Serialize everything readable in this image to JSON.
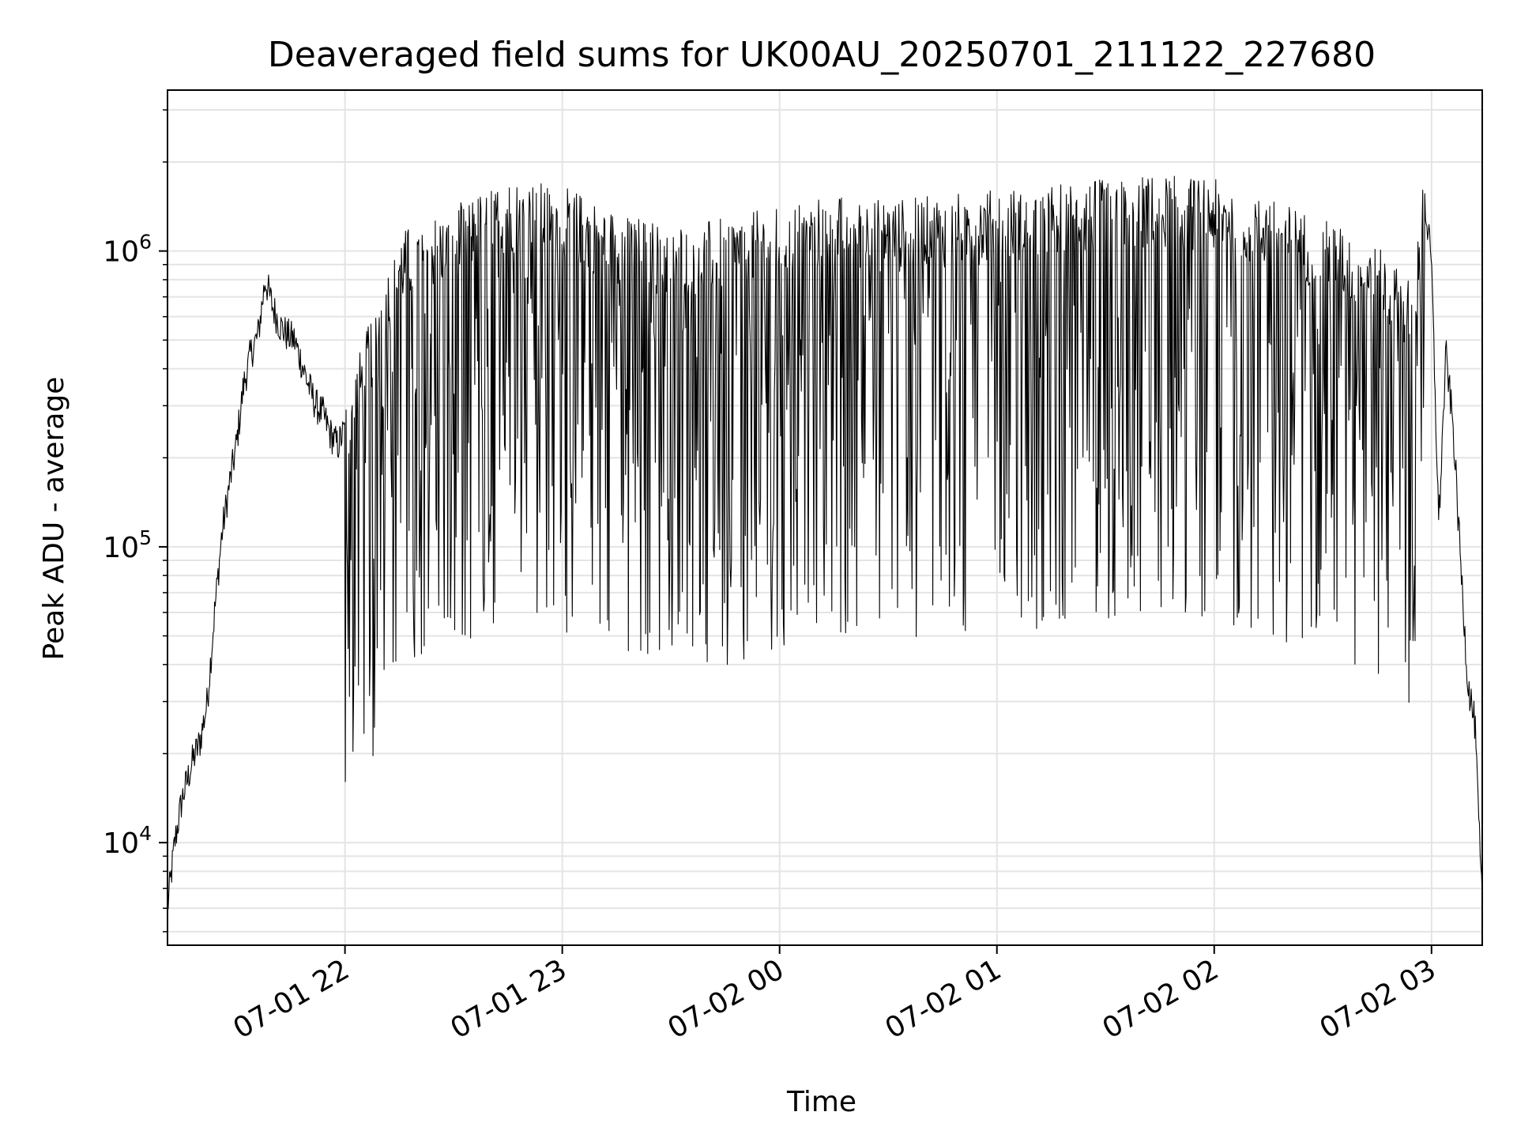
{
  "chart_data": {
    "type": "line",
    "title": "Deaveraged field sums for UK00AU_20250701_211122_227680",
    "xlabel": "Time",
    "ylabel": "Peak ADU - average",
    "yscale": "log",
    "grid": true,
    "legend": "none",
    "xlim": [
      "2025-07-01 21:11",
      "2025-07-02 03:14"
    ],
    "ylim": [
      4500,
      3500000
    ],
    "x_ticks": [
      {
        "value": "2025-07-01 22:00",
        "label": "07-01 22"
      },
      {
        "value": "2025-07-01 23:00",
        "label": "07-01 23"
      },
      {
        "value": "2025-07-02 00:00",
        "label": "07-02 00"
      },
      {
        "value": "2025-07-02 01:00",
        "label": "07-02 01"
      },
      {
        "value": "2025-07-02 02:00",
        "label": "07-02 02"
      },
      {
        "value": "2025-07-02 03:00",
        "label": "07-02 03"
      }
    ],
    "y_ticks": [
      {
        "value": 10000,
        "base": "10",
        "exp": "4"
      },
      {
        "value": 100000,
        "base": "10",
        "exp": "5"
      },
      {
        "value": 1000000,
        "base": "10",
        "exp": "6"
      }
    ],
    "series": [
      {
        "color": "#000000",
        "points": [
          [
            "2025-07-01 21:11",
            6000
          ],
          [
            "2025-07-01 21:13",
            10000
          ],
          [
            "2025-07-01 21:15",
            14000
          ],
          [
            "2025-07-01 21:18",
            19000
          ],
          [
            "2025-07-01 21:20",
            22000
          ],
          [
            "2025-07-01 21:22",
            30000
          ],
          [
            "2025-07-01 21:24",
            60000
          ],
          [
            "2025-07-01 21:26",
            110000
          ],
          [
            "2025-07-01 21:28",
            160000
          ],
          [
            "2025-07-01 21:30",
            220000
          ],
          [
            "2025-07-01 21:32",
            350000
          ],
          [
            "2025-07-01 21:34",
            450000
          ],
          [
            "2025-07-01 21:36",
            520000
          ],
          [
            "2025-07-01 21:38",
            800000
          ],
          [
            "2025-07-01 21:40",
            650000
          ],
          [
            "2025-07-01 21:42",
            560000
          ],
          [
            "2025-07-01 21:44",
            520000
          ],
          [
            "2025-07-01 21:46",
            500000
          ],
          [
            "2025-07-01 21:48",
            420000
          ],
          [
            "2025-07-01 21:50",
            350000
          ],
          [
            "2025-07-01 21:52",
            300000
          ],
          [
            "2025-07-01 21:54",
            280000
          ],
          [
            "2025-07-01 21:56",
            240000
          ],
          [
            "2025-07-01 21:58",
            220000
          ],
          [
            "2025-07-01 22:00",
            250000
          ],
          [
            "2025-07-01 22:15",
            900000
          ],
          [
            "2025-07-01 22:30",
            1100000
          ],
          [
            "2025-07-01 22:45",
            1350000
          ],
          [
            "2025-07-01 23:00",
            1300000
          ],
          [
            "2025-07-01 23:15",
            1050000
          ],
          [
            "2025-07-01 23:30",
            950000
          ],
          [
            "2025-07-01 23:45",
            1000000
          ],
          [
            "2025-07-02 00:00",
            1100000
          ],
          [
            "2025-07-02 00:15",
            1200000
          ],
          [
            "2025-07-02 00:30",
            1150000
          ],
          [
            "2025-07-02 00:45",
            1200000
          ],
          [
            "2025-07-02 01:00",
            1250000
          ],
          [
            "2025-07-02 01:15",
            1300000
          ],
          [
            "2025-07-02 01:30",
            1350000
          ],
          [
            "2025-07-02 01:45",
            1400000
          ],
          [
            "2025-07-02 02:00",
            1350000
          ],
          [
            "2025-07-02 02:15",
            1200000
          ],
          [
            "2025-07-02 02:30",
            1000000
          ],
          [
            "2025-07-02 02:45",
            800000
          ],
          [
            "2025-07-02 02:55",
            600000
          ],
          [
            "2025-07-02 02:58",
            1500000
          ],
          [
            "2025-07-02 03:00",
            900000
          ],
          [
            "2025-07-02 03:02",
            120000
          ],
          [
            "2025-07-02 03:04",
            450000
          ],
          [
            "2025-07-02 03:06",
            250000
          ],
          [
            "2025-07-02 03:08",
            90000
          ],
          [
            "2025-07-02 03:10",
            35000
          ],
          [
            "2025-07-02 03:12",
            25000
          ],
          [
            "2025-07-02 03:13",
            12000
          ],
          [
            "2025-07-02 03:14",
            6000
          ]
        ]
      }
    ]
  }
}
